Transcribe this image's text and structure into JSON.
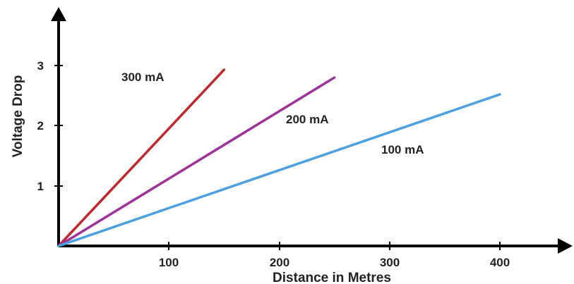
{
  "chart_data": {
    "type": "line",
    "title": "",
    "xlabel": "Distance in Metres",
    "ylabel": "Voltage Drop",
    "xlim": [
      0,
      400
    ],
    "ylim": [
      0,
      3
    ],
    "x_ticks": [
      "100",
      "200",
      "300",
      "400"
    ],
    "y_ticks": [
      "1",
      "2",
      "3"
    ],
    "grid": false,
    "legend": "none",
    "series": [
      {
        "name": "300 mA",
        "color": "#c0282a",
        "x": [
          0,
          150
        ],
        "y": [
          0,
          2.93
        ]
      },
      {
        "name": "200 mA",
        "color": "#a0309a",
        "x": [
          0,
          250
        ],
        "y": [
          0,
          2.8
        ]
      },
      {
        "name": "100 mA",
        "color": "#4aa0e0",
        "x": [
          0,
          400
        ],
        "y": [
          0,
          2.52
        ]
      }
    ]
  }
}
